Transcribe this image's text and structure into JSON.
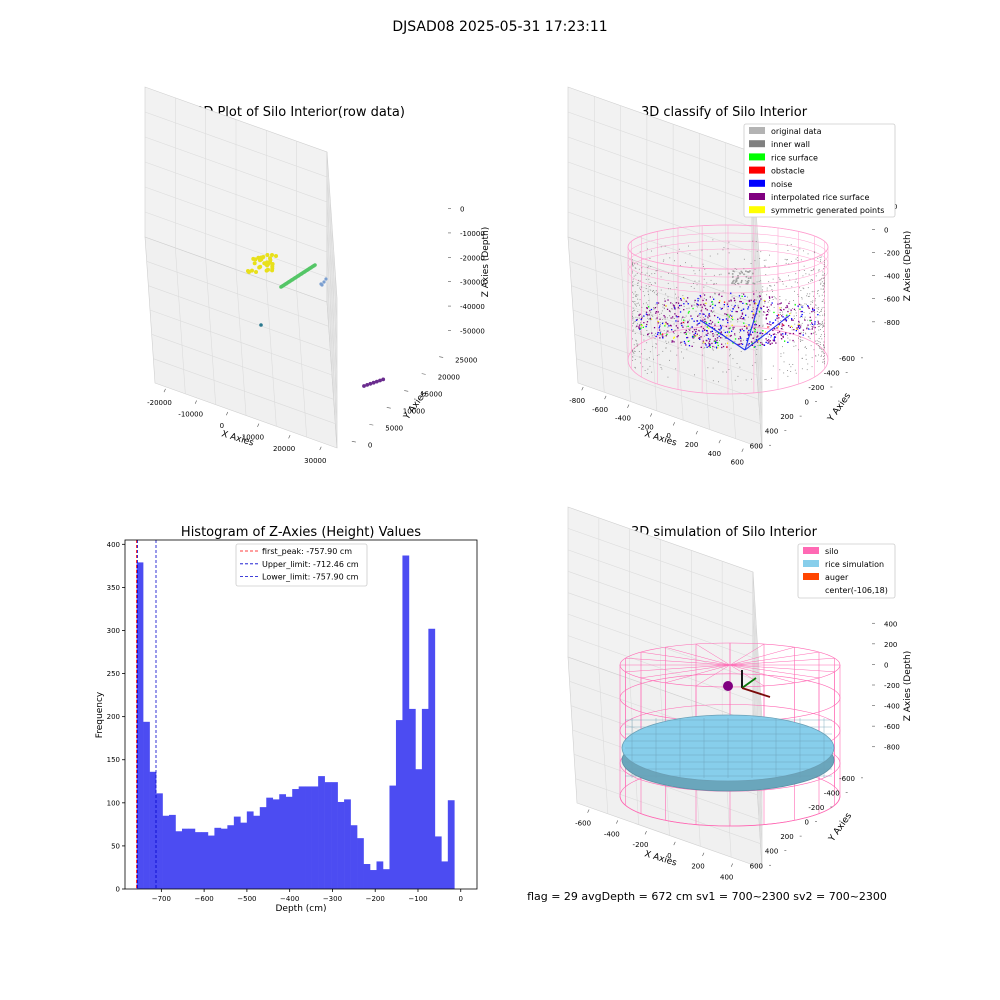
{
  "figure": {
    "title": "DJSAD08 2025-05-31 17:23:11",
    "footer": "flag = 29  avgDepth = 672 cm  sv1 = 700~2300  sv2 = 700~2300"
  },
  "colors": {
    "hist_bar": "#4c4cf2",
    "peak_line": "#ff0000",
    "limit_line": "#0000cc",
    "silo": "#ff69b4",
    "rice": "#87ceeb",
    "auger": "#ff4500",
    "pane": "#f2f2f2",
    "pane_grid": "#dcdcdc"
  },
  "chart_data": [
    {
      "type": "scatter",
      "title": "3D Plot of Silo Interior(row data)",
      "xlabel": "X Axies",
      "ylabel": "Y Axies",
      "zlabel": "Z Axies (Depth)",
      "x_ticks": [
        "-20000",
        "-10000",
        "0",
        "10000",
        "20000",
        "30000"
      ],
      "y_ticks": [
        "0",
        "5000",
        "10000",
        "15000",
        "20000",
        "25000"
      ],
      "z_ticks": [
        "0",
        "-10000",
        "-20000",
        "-30000",
        "-40000",
        "-50000"
      ],
      "clusters": [
        {
          "color": "#e8e01a",
          "desc": "yellow cluster"
        },
        {
          "color": "#55c667",
          "desc": "green line"
        },
        {
          "color": "#7b9fd0",
          "desc": "blue points"
        },
        {
          "color": "#2a788e",
          "desc": "teal point"
        },
        {
          "color": "#6a2c8e",
          "desc": "purple line"
        }
      ]
    },
    {
      "type": "scatter",
      "title": "3D classify of Silo Interior",
      "xlabel": "X Axies",
      "ylabel": "Y Axies",
      "zlabel": "Z Axies (Depth)",
      "x_ticks": [
        "-800",
        "-600",
        "-400",
        "-200",
        "0",
        "200",
        "400",
        "600"
      ],
      "y_ticks": [
        "-600",
        "-400",
        "-200",
        "0",
        "200",
        "400",
        "600"
      ],
      "z_ticks": [
        "200",
        "0",
        "-200",
        "-400",
        "-600",
        "-800"
      ],
      "legend": [
        {
          "label": "original data",
          "color": "#b3b3b3"
        },
        {
          "label": "inner wall",
          "color": "#808080"
        },
        {
          "label": "rice surface",
          "color": "#00ff00"
        },
        {
          "label": "obstacle",
          "color": "#ff0000"
        },
        {
          "label": "noise",
          "color": "#0000ff"
        },
        {
          "label": "interpolated rice surface",
          "color": "#800080"
        },
        {
          "label": "symmetric generated points",
          "color": "#ffff00"
        }
      ],
      "legend_position": "top-right"
    },
    {
      "type": "bar",
      "title": "Histogram of Z-Axies (Height) Values",
      "xlabel": "Depth (cm)",
      "ylabel": "Frequency",
      "xlim": [
        -785,
        38
      ],
      "ylim": [
        0,
        405
      ],
      "x_ticks": [
        -700,
        -600,
        -500,
        -400,
        -300,
        -200,
        -100,
        0
      ],
      "y_ticks": [
        0,
        50,
        100,
        150,
        200,
        250,
        300,
        350,
        400
      ],
      "bin_start": -757.9,
      "bin_width": 15.16,
      "values": [
        379,
        194,
        136,
        111,
        85,
        86,
        67,
        70,
        70,
        66,
        66,
        62,
        71,
        70,
        74,
        84,
        77,
        90,
        85,
        95,
        106,
        104,
        110,
        107,
        116,
        119,
        119,
        119,
        131,
        124,
        124,
        101,
        104,
        74,
        59,
        29,
        22,
        32,
        23,
        120,
        196,
        387,
        209,
        139,
        209,
        302,
        61,
        32,
        103
      ],
      "vlines": [
        {
          "label": "first_peak: -757.90 cm",
          "x": -757.9,
          "color": "#ff0000"
        },
        {
          "label": "Upper_limit: -712.46 cm",
          "x": -712.46,
          "color": "#0000cc"
        },
        {
          "label": "Lower_limit: -757.90 cm",
          "x": -757.9,
          "color": "#0000cc"
        }
      ],
      "legend_position": "top-center"
    },
    {
      "type": "surface",
      "title": "3D simulation of Silo Interior",
      "xlabel": "X Axies",
      "ylabel": "Y Axies",
      "zlabel": "Z Axies (Depth)",
      "x_ticks": [
        "-600",
        "-400",
        "-200",
        "0",
        "200",
        "400"
      ],
      "y_ticks": [
        "-600",
        "-400",
        "-200",
        "0",
        "200",
        "400",
        "600"
      ],
      "z_ticks": [
        "400",
        "200",
        "0",
        "-200",
        "-400",
        "-600",
        "-800"
      ],
      "legend": [
        {
          "label": "silo",
          "color": "#ff69b4"
        },
        {
          "label": "rice simulation",
          "color": "#87ceeb"
        },
        {
          "label": "auger",
          "color": "#ff4500"
        },
        {
          "label": "center(-106,18)",
          "color": ""
        }
      ],
      "legend_position": "top-right"
    }
  ]
}
